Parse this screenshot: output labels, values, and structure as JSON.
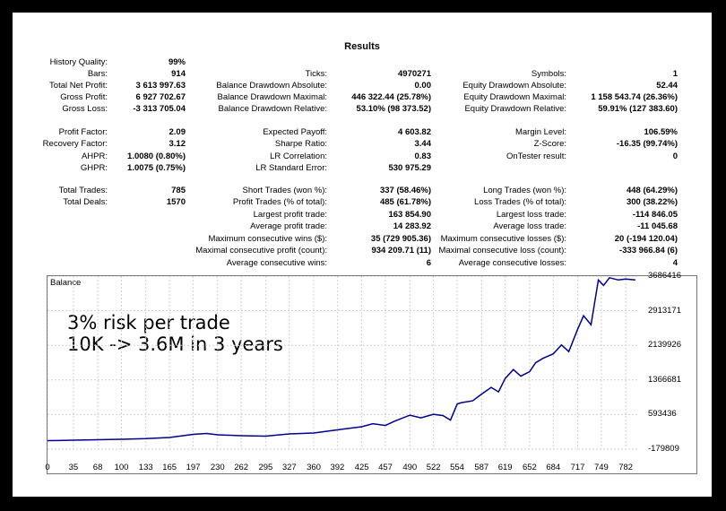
{
  "title": "Results",
  "col1": [
    {
      "label": "History Quality:",
      "value": "99%"
    },
    {
      "label": "Bars:",
      "value": "914"
    },
    {
      "label": "Total Net Profit:",
      "value": "3 613 997.63"
    },
    {
      "label": "Gross Profit:",
      "value": "6 927 702.67"
    },
    {
      "label": "Gross Loss:",
      "value": "-3 313 705.04"
    },
    {
      "label": "Profit Factor:",
      "value": "2.09"
    },
    {
      "label": "Recovery Factor:",
      "value": "3.12"
    },
    {
      "label": "AHPR:",
      "value": "1.0080 (0.80%)"
    },
    {
      "label": "GHPR:",
      "value": "1.0075 (0.75%)"
    },
    {
      "label": "Total Trades:",
      "value": "785"
    },
    {
      "label": "Total Deals:",
      "value": "1570"
    }
  ],
  "col2": [
    {
      "label": "Ticks:",
      "value": "4970271"
    },
    {
      "label": "Balance Drawdown Absolute:",
      "value": "0.00"
    },
    {
      "label": "Balance Drawdown Maximal:",
      "value": "446 322.44 (25.78%)"
    },
    {
      "label": "Balance Drawdown Relative:",
      "value": "53.10% (98 373.52)"
    },
    {
      "label": "Expected Payoff:",
      "value": "4 603.82"
    },
    {
      "label": "Sharpe Ratio:",
      "value": "3.44"
    },
    {
      "label": "LR Correlation:",
      "value": "0.83"
    },
    {
      "label": "LR Standard Error:",
      "value": "530 975.29"
    },
    {
      "label": "Short Trades (won %):",
      "value": "337 (58.46%)"
    },
    {
      "label": "Profit Trades (% of total):",
      "value": "485 (61.78%)"
    },
    {
      "label": "Largest profit trade:",
      "value": "163 854.90"
    },
    {
      "label": "Average profit trade:",
      "value": "14 283.92"
    },
    {
      "label": "Maximum consecutive wins ($):",
      "value": "35 (729 905.36)"
    },
    {
      "label": "Maximal consecutive profit (count):",
      "value": "934 209.71 (11)"
    },
    {
      "label": "Average consecutive wins:",
      "value": "6"
    }
  ],
  "col3": [
    {
      "label": "Symbols:",
      "value": "1"
    },
    {
      "label": "Equity Drawdown Absolute:",
      "value": "52.44"
    },
    {
      "label": "Equity Drawdown Maximal:",
      "value": "1 158 543.74 (26.36%)"
    },
    {
      "label": "Equity Drawdown Relative:",
      "value": "59.91% (127 383.60)"
    },
    {
      "label": "Margin Level:",
      "value": "106.59%"
    },
    {
      "label": "Z-Score:",
      "value": "-16.35 (99.74%)"
    },
    {
      "label": "OnTester result:",
      "value": "0"
    },
    {
      "label": "Long Trades (won %):",
      "value": "448 (64.29%)"
    },
    {
      "label": "Loss Trades (% of total):",
      "value": "300 (38.22%)"
    },
    {
      "label": "Largest loss trade:",
      "value": "-114 846.05"
    },
    {
      "label": "Average loss trade:",
      "value": "-11 045.68"
    },
    {
      "label": "Maximum consecutive losses ($):",
      "value": "20 (-194 120.04)"
    },
    {
      "label": "Maximal consecutive loss (count):",
      "value": "-333 966.84 (6)"
    },
    {
      "label": "Average consecutive losses:",
      "value": "4"
    }
  ],
  "chart": {
    "label": "Balance",
    "overlay_line1": "3% risk per trade",
    "overlay_line2": "10K -> 3.6M in 3 years",
    "line_color": "#00008B"
  },
  "chart_data": {
    "type": "line",
    "title": "Balance",
    "y_ticks": [
      "3686416",
      "2913171",
      "2139926",
      "1366681",
      "593436",
      "-179809"
    ],
    "x_ticks": [
      "0",
      "35",
      "68",
      "100",
      "133",
      "165",
      "197",
      "230",
      "262",
      "295",
      "327",
      "360",
      "392",
      "425",
      "457",
      "490",
      "522",
      "554",
      "587",
      "619",
      "652",
      "684",
      "717",
      "749",
      "782"
    ],
    "ylim": [
      -179809,
      3686416
    ],
    "xlim": [
      0,
      800
    ],
    "series": [
      {
        "values": [
          [
            0,
            10000
          ],
          [
            15,
            12000
          ],
          [
            35,
            20000
          ],
          [
            68,
            30000
          ],
          [
            100,
            40000
          ],
          [
            133,
            55000
          ],
          [
            165,
            80000
          ],
          [
            197,
            150000
          ],
          [
            215,
            170000
          ],
          [
            230,
            140000
          ],
          [
            262,
            120000
          ],
          [
            295,
            110000
          ],
          [
            327,
            160000
          ],
          [
            360,
            180000
          ],
          [
            392,
            250000
          ],
          [
            425,
            320000
          ],
          [
            440,
            390000
          ],
          [
            457,
            350000
          ],
          [
            470,
            450000
          ],
          [
            490,
            580000
          ],
          [
            505,
            520000
          ],
          [
            522,
            600000
          ],
          [
            535,
            570000
          ],
          [
            545,
            470000
          ],
          [
            554,
            830000
          ],
          [
            560,
            860000
          ],
          [
            575,
            900000
          ],
          [
            587,
            1050000
          ],
          [
            600,
            1200000
          ],
          [
            610,
            1100000
          ],
          [
            619,
            1400000
          ],
          [
            630,
            1600000
          ],
          [
            640,
            1450000
          ],
          [
            652,
            1550000
          ],
          [
            660,
            1750000
          ],
          [
            670,
            1850000
          ],
          [
            684,
            1950000
          ],
          [
            695,
            2150000
          ],
          [
            705,
            2000000
          ],
          [
            717,
            2500000
          ],
          [
            725,
            2800000
          ],
          [
            735,
            2600000
          ],
          [
            745,
            3600000
          ],
          [
            752,
            3480000
          ],
          [
            760,
            3650000
          ],
          [
            772,
            3600000
          ],
          [
            782,
            3620000
          ],
          [
            795,
            3600000
          ]
        ]
      }
    ]
  }
}
